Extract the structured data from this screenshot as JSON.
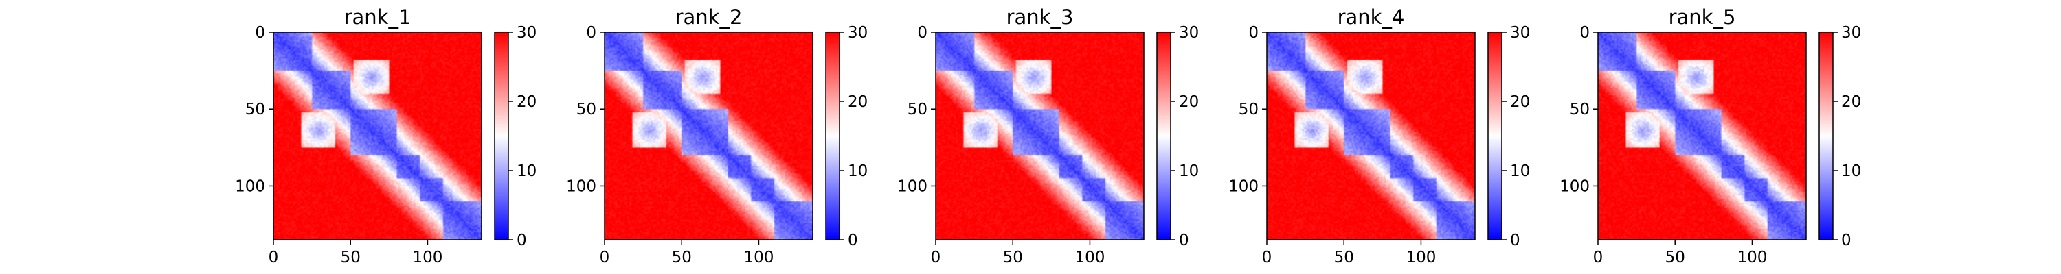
{
  "chart_data": [
    {
      "type": "heatmap",
      "title": "rank_1",
      "xticks": [
        "0",
        "50",
        "100"
      ],
      "yticks": [
        "0",
        "50",
        "100"
      ],
      "xlim": [
        0,
        135
      ],
      "ylim": [
        135,
        0
      ],
      "colorbar": {
        "min": 0,
        "max": 30,
        "ticks": [
          "0",
          "10",
          "20",
          "30"
        ],
        "colormap": "bwr"
      },
      "blocks": [
        [
          0,
          25
        ],
        [
          25,
          50
        ],
        [
          50,
          80
        ],
        [
          80,
          95
        ],
        [
          95,
          110
        ],
        [
          110,
          135
        ]
      ],
      "contacts": [
        [
          18,
          40
        ],
        [
          52,
          75
        ]
      ]
    },
    {
      "type": "heatmap",
      "title": "rank_2",
      "xticks": [
        "0",
        "50",
        "100"
      ],
      "yticks": [
        "0",
        "50",
        "100"
      ],
      "xlim": [
        0,
        135
      ],
      "ylim": [
        135,
        0
      ],
      "colorbar": {
        "min": 0,
        "max": 30,
        "ticks": [
          "0",
          "10",
          "20",
          "30"
        ],
        "colormap": "bwr"
      },
      "blocks": [
        [
          0,
          25
        ],
        [
          25,
          50
        ],
        [
          50,
          80
        ],
        [
          80,
          95
        ],
        [
          95,
          110
        ],
        [
          110,
          135
        ]
      ],
      "contacts": [
        [
          18,
          40
        ],
        [
          52,
          75
        ]
      ]
    },
    {
      "type": "heatmap",
      "title": "rank_3",
      "xticks": [
        "0",
        "50",
        "100"
      ],
      "yticks": [
        "0",
        "50",
        "100"
      ],
      "xlim": [
        0,
        135
      ],
      "ylim": [
        135,
        0
      ],
      "colorbar": {
        "min": 0,
        "max": 30,
        "ticks": [
          "0",
          "10",
          "20",
          "30"
        ],
        "colormap": "bwr"
      },
      "blocks": [
        [
          0,
          25
        ],
        [
          25,
          50
        ],
        [
          50,
          80
        ],
        [
          80,
          95
        ],
        [
          95,
          110
        ],
        [
          110,
          135
        ]
      ],
      "contacts": [
        [
          18,
          40
        ],
        [
          52,
          75
        ]
      ]
    },
    {
      "type": "heatmap",
      "title": "rank_4",
      "xticks": [
        "0",
        "50",
        "100"
      ],
      "yticks": [
        "0",
        "50",
        "100"
      ],
      "xlim": [
        0,
        135
      ],
      "ylim": [
        135,
        0
      ],
      "colorbar": {
        "min": 0,
        "max": 30,
        "ticks": [
          "0",
          "10",
          "20",
          "30"
        ],
        "colormap": "bwr"
      },
      "blocks": [
        [
          0,
          25
        ],
        [
          25,
          50
        ],
        [
          50,
          80
        ],
        [
          80,
          95
        ],
        [
          95,
          110
        ],
        [
          110,
          135
        ]
      ],
      "contacts": [
        [
          18,
          40
        ],
        [
          52,
          75
        ]
      ]
    },
    {
      "type": "heatmap",
      "title": "rank_5",
      "xticks": [
        "0",
        "50",
        "100"
      ],
      "yticks": [
        "0",
        "50",
        "100"
      ],
      "xlim": [
        0,
        135
      ],
      "ylim": [
        135,
        0
      ],
      "colorbar": {
        "min": 0,
        "max": 30,
        "ticks": [
          "0",
          "10",
          "20",
          "30"
        ],
        "colormap": "bwr"
      },
      "blocks": [
        [
          0,
          25
        ],
        [
          25,
          50
        ],
        [
          50,
          80
        ],
        [
          80,
          95
        ],
        [
          95,
          110
        ],
        [
          110,
          135
        ]
      ],
      "contacts": [
        [
          18,
          40
        ],
        [
          52,
          75
        ]
      ]
    }
  ]
}
